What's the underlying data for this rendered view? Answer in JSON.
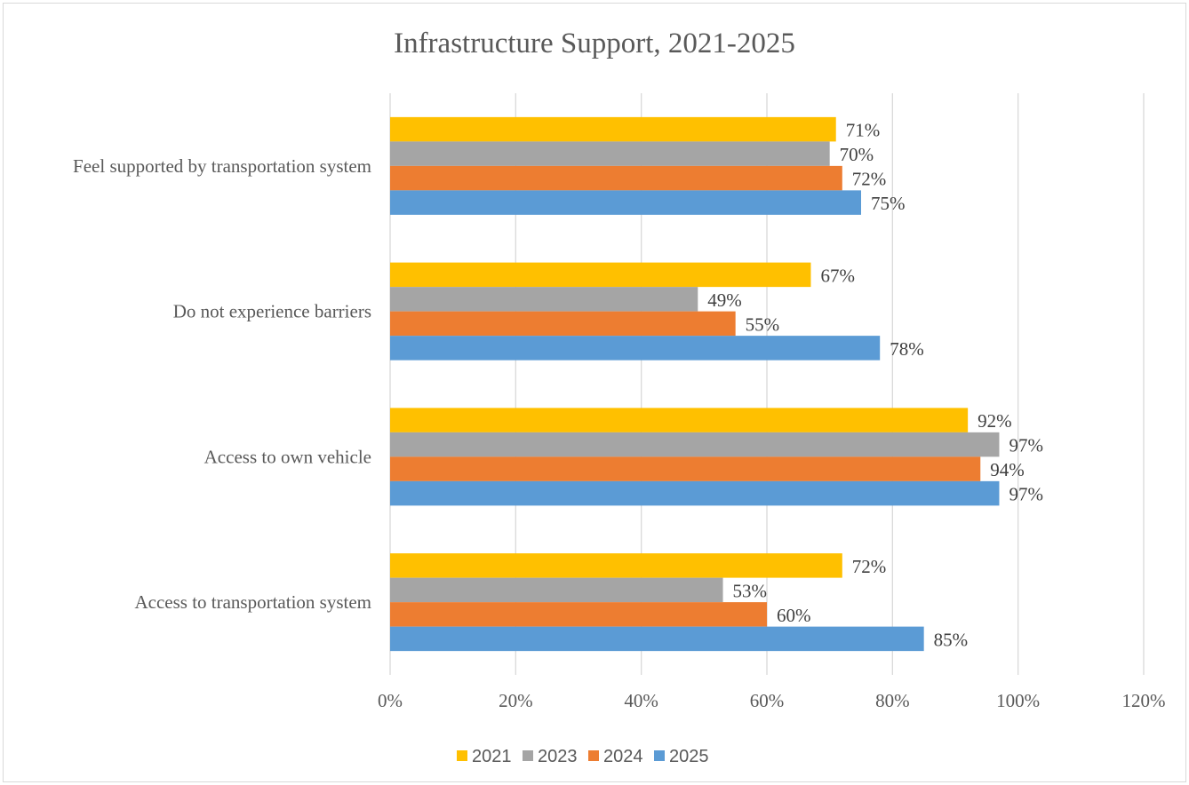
{
  "chart_data": {
    "type": "bar",
    "orientation": "horizontal",
    "title": "Infrastructure Support, 2021-2025",
    "categories": [
      "Feel supported by transportation system",
      "Do not experience barriers",
      "Access to own vehicle",
      "Access to transportation system"
    ],
    "series": [
      {
        "name": "2021",
        "color": "#FFC000",
        "values": [
          71,
          67,
          92,
          72
        ],
        "labels": [
          "71%",
          "67%",
          "92%",
          "72%"
        ]
      },
      {
        "name": "2023",
        "color": "#A5A5A5",
        "values": [
          70,
          49,
          97,
          53
        ],
        "labels": [
          "70%",
          "49%",
          "97%",
          "53%"
        ]
      },
      {
        "name": "2024",
        "color": "#ED7D31",
        "values": [
          72,
          55,
          94,
          60
        ],
        "labels": [
          "72%",
          "55%",
          "94%",
          "60%"
        ]
      },
      {
        "name": "2025",
        "color": "#5B9BD5",
        "values": [
          75,
          78,
          97,
          85
        ],
        "labels": [
          "75%",
          "78%",
          "97%",
          "85%"
        ]
      }
    ],
    "xlim": [
      0,
      120
    ],
    "xticks": [
      "0%",
      "20%",
      "40%",
      "60%",
      "80%",
      "100%",
      "120%"
    ],
    "grid": true,
    "legend_position": "bottom"
  }
}
